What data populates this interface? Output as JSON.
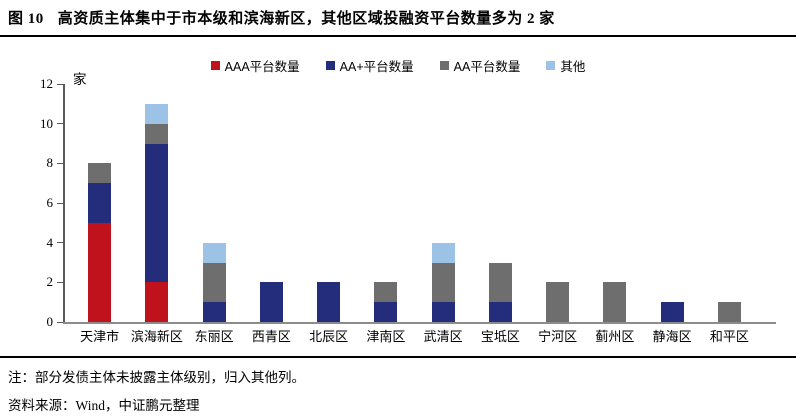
{
  "header": {
    "figure_label": "图 10",
    "title": "高资质主体集中于市本级和滨海新区，其他区域投融资平台数量多为 2 家"
  },
  "chart_data": {
    "type": "bar",
    "stacked": true,
    "title": "",
    "xlabel": "",
    "ylabel": "家",
    "unit_label": "家",
    "ylim": [
      0,
      12
    ],
    "y_ticks": [
      0,
      2,
      4,
      6,
      8,
      10,
      12
    ],
    "grid": false,
    "legend_position": "top",
    "categories": [
      "天津市",
      "滨海新区",
      "东丽区",
      "西青区",
      "北辰区",
      "津南区",
      "武清区",
      "宝坻区",
      "宁河区",
      "蓟州区",
      "静海区",
      "和平区"
    ],
    "series": [
      {
        "name": "AAA平台数量",
        "color": "#c0121c",
        "pattern": "solid",
        "values": [
          5,
          2,
          0,
          0,
          0,
          0,
          0,
          0,
          0,
          0,
          0,
          0
        ]
      },
      {
        "name": "AA+平台数量",
        "color": "#242d7c",
        "pattern": "solid",
        "values": [
          2,
          7,
          1,
          2,
          2,
          1,
          1,
          1,
          0,
          0,
          1,
          0
        ]
      },
      {
        "name": "AA平台数量",
        "color": "#6e6e6e",
        "pattern": "dotted",
        "values": [
          1,
          1,
          2,
          0,
          0,
          1,
          2,
          2,
          2,
          2,
          0,
          1
        ]
      },
      {
        "name": "其他",
        "color": "#9cc2e5",
        "pattern": "solid",
        "values": [
          0,
          1,
          1,
          0,
          0,
          0,
          1,
          0,
          0,
          0,
          0,
          0
        ]
      }
    ],
    "totals": [
      8,
      11,
      4,
      2,
      2,
      2,
      4,
      3,
      2,
      2,
      1,
      1
    ]
  },
  "notes": {
    "note": "注：部分发债主体未披露主体级别，归入其他列。",
    "source": "资料来源：Wind，中证鹏元整理"
  },
  "colors": {
    "aaa_red": "#c0121c",
    "aa_plus_navy": "#242d7c",
    "aa_gray": "#6e6e6e",
    "other_light_blue": "#9cc2e5",
    "axis": "#595959",
    "baseline": "#8c8c8c",
    "rule": "#000000"
  }
}
